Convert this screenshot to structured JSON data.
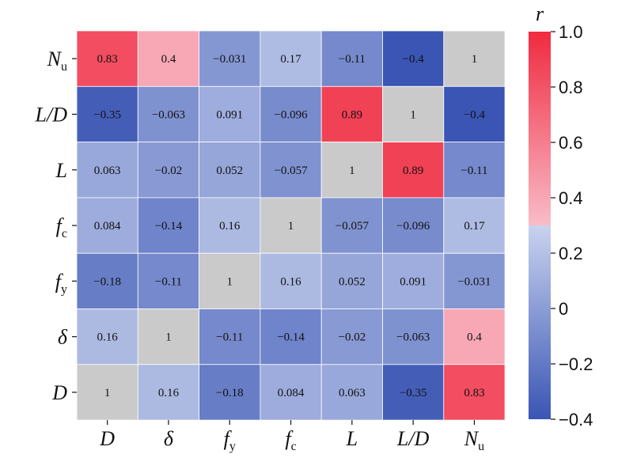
{
  "chart_data": {
    "type": "heatmap",
    "x_labels": [
      {
        "main": "D",
        "sub": ""
      },
      {
        "main": "δ",
        "sub": ""
      },
      {
        "main": "f",
        "sub": "y"
      },
      {
        "main": "f",
        "sub": "c"
      },
      {
        "main": "L",
        "sub": ""
      },
      {
        "main": "L/D",
        "sub": ""
      },
      {
        "main": "N",
        "sub": "u"
      }
    ],
    "y_labels": [
      {
        "main": "N",
        "sub": "u"
      },
      {
        "main": "L/D",
        "sub": ""
      },
      {
        "main": "L",
        "sub": ""
      },
      {
        "main": "f",
        "sub": "c"
      },
      {
        "main": "f",
        "sub": "y"
      },
      {
        "main": "δ",
        "sub": ""
      },
      {
        "main": "D",
        "sub": ""
      }
    ],
    "matrix": [
      [
        "0.83",
        "0.4",
        "−0.031",
        "0.17",
        "−0.11",
        "−0.4",
        "1"
      ],
      [
        "−0.35",
        "−0.063",
        "0.091",
        "−0.096",
        "0.89",
        "1",
        "−0.4"
      ],
      [
        "0.063",
        "−0.02",
        "0.052",
        "−0.057",
        "1",
        "0.89",
        "−0.11"
      ],
      [
        "0.084",
        "−0.14",
        "0.16",
        "1",
        "−0.057",
        "−0.096",
        "0.17"
      ],
      [
        "−0.18",
        "−0.11",
        "1",
        "0.16",
        "0.052",
        "0.091",
        "−0.031"
      ],
      [
        "0.16",
        "1",
        "−0.11",
        "−0.14",
        "−0.02",
        "−0.063",
        "0.4"
      ],
      [
        "1",
        "0.16",
        "−0.18",
        "0.084",
        "0.063",
        "−0.35",
        "0.83"
      ]
    ],
    "colorbar": {
      "title": "r",
      "ticks": [
        "1.0",
        "0.8",
        "0.6",
        "0.4",
        "0.2",
        "0",
        "−0.2",
        "−0.4"
      ],
      "range": [
        -0.4,
        1.0
      ],
      "colors": {
        "low": "#3a55b4",
        "mid_low": "#c9d3ee",
        "mid_high": "#f9bcc8",
        "high": "#f02a40",
        "diagonal": "#cacaca"
      }
    }
  }
}
